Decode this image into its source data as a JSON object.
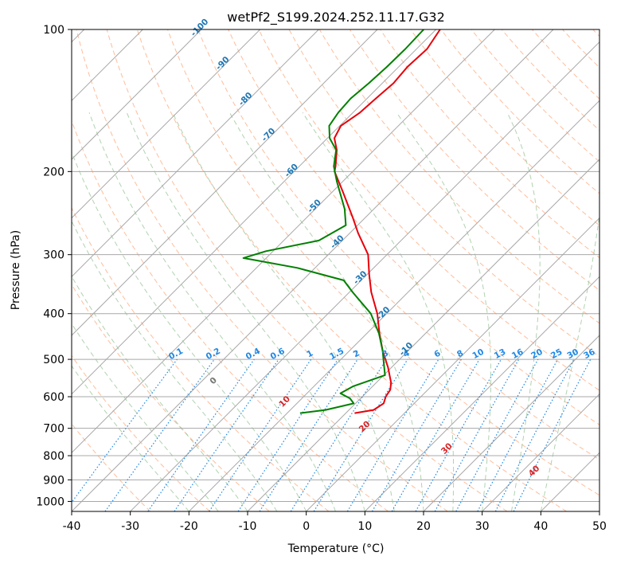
{
  "chart_data": {
    "type": "line",
    "subtype": "skew-t log-p diagram",
    "title": "wetPf2_S199.2024.252.11.17.G32",
    "xlabel": "Temperature (°C)",
    "ylabel": "Pressure (hPa)",
    "xlim": [
      -40,
      50
    ],
    "ylim": [
      1050,
      100
    ],
    "y_scale": "log",
    "x_ticks": [
      -40,
      -30,
      -20,
      -10,
      0,
      10,
      20,
      30,
      40,
      50
    ],
    "y_ticks": [
      100,
      200,
      300,
      400,
      500,
      600,
      700,
      800,
      900,
      1000
    ],
    "grid": true,
    "legend": "none",
    "series": [
      {
        "color": "#e8000b",
        "role": "temperature",
        "points": [
          {
            "p": 100,
            "t": -59.3
          },
          {
            "p": 110,
            "t": -58.2
          },
          {
            "p": 120,
            "t": -58.5
          },
          {
            "p": 130,
            "t": -58.1
          },
          {
            "p": 140,
            "t": -58.5
          },
          {
            "p": 150,
            "t": -58.8
          },
          {
            "p": 160,
            "t": -59.8
          },
          {
            "p": 170,
            "t": -58.8
          },
          {
            "p": 180,
            "t": -56.4
          },
          {
            "p": 195,
            "t": -53.8
          },
          {
            "p": 200,
            "t": -53.1
          },
          {
            "p": 220,
            "t": -48.4
          },
          {
            "p": 250,
            "t": -42.2
          },
          {
            "p": 270,
            "t": -38.6
          },
          {
            "p": 300,
            "t": -33.2
          },
          {
            "p": 330,
            "t": -29.7
          },
          {
            "p": 360,
            "t": -26.3
          },
          {
            "p": 400,
            "t": -21.6
          },
          {
            "p": 440,
            "t": -17.9
          },
          {
            "p": 480,
            "t": -14.3
          },
          {
            "p": 520,
            "t": -10.6
          },
          {
            "p": 560,
            "t": -7.5
          },
          {
            "p": 580,
            "t": -6.4
          },
          {
            "p": 600,
            "t": -6.0
          },
          {
            "p": 620,
            "t": -5.2
          },
          {
            "p": 640,
            "t": -5.8
          },
          {
            "p": 650,
            "t": -8.5
          }
        ]
      },
      {
        "color": "#008000",
        "role": "dewpoint",
        "points": [
          {
            "p": 100,
            "t": -62.1
          },
          {
            "p": 110,
            "t": -61.9
          },
          {
            "p": 120,
            "t": -62.0
          },
          {
            "p": 130,
            "t": -62.3
          },
          {
            "p": 140,
            "t": -62.8
          },
          {
            "p": 150,
            "t": -62.5
          },
          {
            "p": 160,
            "t": -61.8
          },
          {
            "p": 170,
            "t": -59.6
          },
          {
            "p": 180,
            "t": -56.5
          },
          {
            "p": 195,
            "t": -54.1
          },
          {
            "p": 210,
            "t": -51.0
          },
          {
            "p": 240,
            "t": -45.0
          },
          {
            "p": 260,
            "t": -42.0
          },
          {
            "p": 280,
            "t": -44.0
          },
          {
            "p": 295,
            "t": -51.2
          },
          {
            "p": 305,
            "t": -53.9
          },
          {
            "p": 320,
            "t": -43.0
          },
          {
            "p": 340,
            "t": -33.0
          },
          {
            "p": 360,
            "t": -29.5
          },
          {
            "p": 400,
            "t": -22.7
          },
          {
            "p": 440,
            "t": -18.0
          },
          {
            "p": 480,
            "t": -14.3
          },
          {
            "p": 510,
            "t": -12.0
          },
          {
            "p": 540,
            "t": -9.8
          },
          {
            "p": 570,
            "t": -13.3
          },
          {
            "p": 590,
            "t": -14.3
          },
          {
            "p": 605,
            "t": -11.8
          },
          {
            "p": 620,
            "t": -10.3
          },
          {
            "p": 640,
            "t": -14.0
          },
          {
            "p": 650,
            "t": -17.8
          }
        ]
      }
    ],
    "reference_lines": {
      "isotherms_labels": [
        -100,
        -90,
        -80,
        -70,
        -60,
        -50,
        -40,
        -30,
        -20,
        -10
      ],
      "dry_adiabats_labels": [
        0,
        10,
        20,
        30,
        40
      ],
      "mixing_ratio_labels": [
        "0.1",
        "0.2",
        "0.4",
        "0.6",
        "1",
        "1.5",
        "2",
        "3",
        "4",
        "6",
        "8",
        "10",
        "13",
        "16",
        "20",
        "25",
        "30",
        "36"
      ],
      "mixing_ratio_values": [
        0.1,
        0.2,
        0.4,
        0.6,
        1,
        1.5,
        2,
        3,
        4,
        6,
        8,
        10,
        13,
        16,
        20,
        25,
        30,
        36
      ]
    },
    "colors": {
      "isotherm": "#a8a8a8",
      "isotherm_label": "#1f77b4",
      "dry_adiabat": "#ff9966",
      "dry_adiabat_label": "#d62728",
      "moist_adiabat": "#8fbf8f",
      "mixing_ratio": "#1e88e5",
      "mixing_ratio_label": "#1e88e5",
      "isobar": "#a8a8a8"
    }
  }
}
